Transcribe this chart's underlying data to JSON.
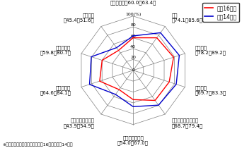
{
  "categories": [
    "開発・設計（60.0、63.4）",
    "調達\n（74.1、85.6）",
    "在庫管理\n（78.2、89.2）",
    "商品生産\n（69.7、83.3）",
    "物流・サービス提供\n（68.7、79.4）",
    "販売・販売促進\n（54.0、67.0）",
    "アフターサービス\n（43.9、54.9）",
    "経理・会計\n（64.6、84.1）",
    "給与・人事\n（59.8、80.7）",
    "情報共有\n（45.4、51.6）"
  ],
  "values_h16": [
    60.0,
    74.1,
    78.2,
    69.7,
    68.7,
    54.0,
    43.9,
    64.6,
    59.8,
    45.4
  ],
  "values_h14": [
    63.4,
    85.6,
    89.2,
    83.3,
    79.4,
    67.0,
    54.9,
    84.1,
    80.7,
    51.6
  ],
  "color_h16": "#ff0000",
  "color_h14": "#0000cc",
  "legend_h16": "平成16年度",
  "legend_h14": "平成14年度",
  "r_max": 100,
  "r_ticks": [
    20,
    40,
    60,
    80,
    100
  ],
  "r_tick_label_0": "0",
  "r_tick_labels": [
    "20",
    "40",
    "60",
    "80",
    "100(%)"
  ],
  "note": "※　（　）内の数字は、順に平成16年度、平成14年度",
  "label_fontsize": 5.0,
  "tick_fontsize": 4.5,
  "legend_fontsize": 5.5
}
